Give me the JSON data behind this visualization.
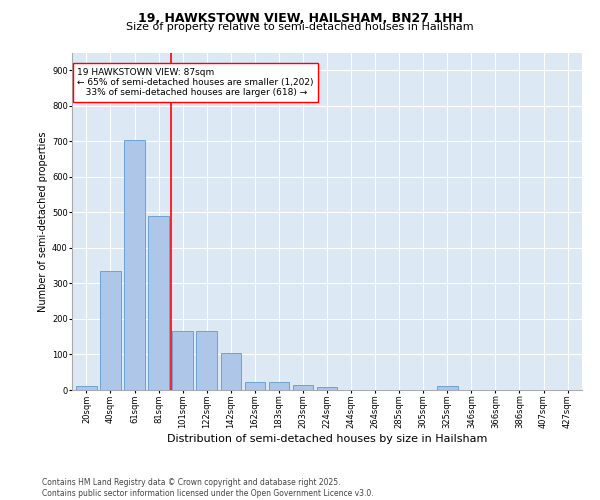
{
  "title": "19, HAWKSTOWN VIEW, HAILSHAM, BN27 1HH",
  "subtitle": "Size of property relative to semi-detached houses in Hailsham",
  "xlabel": "Distribution of semi-detached houses by size in Hailsham",
  "ylabel": "Number of semi-detached properties",
  "categories": [
    "20sqm",
    "40sqm",
    "61sqm",
    "81sqm",
    "101sqm",
    "122sqm",
    "142sqm",
    "162sqm",
    "183sqm",
    "203sqm",
    "224sqm",
    "244sqm",
    "264sqm",
    "285sqm",
    "305sqm",
    "325sqm",
    "346sqm",
    "366sqm",
    "386sqm",
    "407sqm",
    "427sqm"
  ],
  "values": [
    12,
    335,
    705,
    490,
    165,
    165,
    105,
    22,
    22,
    14,
    8,
    0,
    0,
    0,
    0,
    12,
    0,
    0,
    0,
    0,
    0
  ],
  "bar_color": "#aec6e8",
  "bar_edge_color": "#5b9bd5",
  "property_line_x": 3.5,
  "annotation_text": "19 HAWKSTOWN VIEW: 87sqm\n← 65% of semi-detached houses are smaller (1,202)\n   33% of semi-detached houses are larger (618) →",
  "ylim": [
    0,
    950
  ],
  "yticks": [
    0,
    100,
    200,
    300,
    400,
    500,
    600,
    700,
    800,
    900
  ],
  "background_color": "#dce9f5",
  "footer_text": "Contains HM Land Registry data © Crown copyright and database right 2025.\nContains public sector information licensed under the Open Government Licence v3.0.",
  "title_fontsize": 9,
  "subtitle_fontsize": 8,
  "annotation_fontsize": 6.5,
  "ylabel_fontsize": 7,
  "xlabel_fontsize": 8,
  "footer_fontsize": 5.5,
  "tick_fontsize": 6
}
